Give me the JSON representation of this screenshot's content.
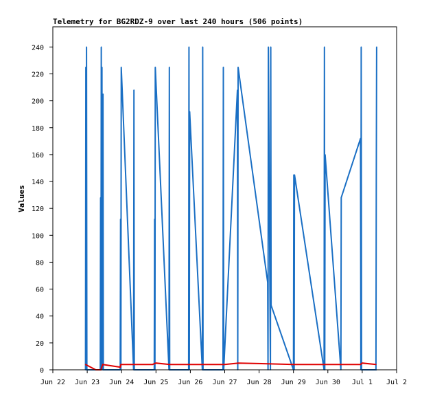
{
  "chart_data": {
    "type": "line",
    "title": "Telemetry for BG2RDZ-9 over last 240 hours (506 points)",
    "xlabel": "",
    "ylabel": "Values",
    "xlim": [
      0,
      10
    ],
    "ylim": [
      0,
      255
    ],
    "x_tick_labels": [
      "Jun 22",
      "Jun 23",
      "Jun 24",
      "Jun 25",
      "Jun 26",
      "Jun 27",
      "Jun 28",
      "Jun 29",
      "Jun 30",
      "Jul 1",
      "Jul 2"
    ],
    "y_ticks": [
      0,
      20,
      40,
      60,
      80,
      100,
      120,
      140,
      160,
      180,
      200,
      220,
      240
    ],
    "grid": false,
    "series": [
      {
        "name": "",
        "color": "#1a6fc4",
        "x": [
          0.95,
          0.96,
          0.97,
          0.98,
          0.99,
          1.0,
          1.38,
          1.39,
          1.4,
          1.41,
          1.42,
          1.43,
          1.44,
          1.46,
          1.47,
          1.48,
          1.96,
          1.97,
          1.98,
          1.99,
          2.35,
          2.36,
          2.37,
          2.95,
          2.96,
          2.97,
          2.98,
          3.38,
          3.39,
          3.4,
          3.95,
          3.96,
          3.97,
          3.98,
          4.35,
          4.36,
          4.37,
          4.95,
          4.96,
          4.97,
          5.37,
          5.38,
          5.39,
          6.25,
          6.26,
          6.27,
          6.33,
          6.34,
          6.35,
          7.0,
          7.01,
          7.02,
          7.03,
          7.89,
          7.9,
          7.91,
          7.92,
          8.38,
          8.39,
          8.95,
          8.96,
          8.97,
          8.98,
          9.4,
          9.41,
          9.42
        ],
        "y": [
          0,
          225,
          0,
          240,
          0,
          0,
          0,
          128,
          0,
          240,
          0,
          225,
          0,
          205,
          0,
          0,
          0,
          112,
          0,
          225,
          0,
          208,
          0,
          0,
          112,
          0,
          225,
          0,
          225,
          0,
          0,
          240,
          0,
          192,
          0,
          240,
          0,
          0,
          225,
          0,
          208,
          0,
          225,
          65,
          0,
          240,
          0,
          240,
          48,
          0,
          145,
          0,
          145,
          0,
          240,
          0,
          160,
          0,
          128,
          172,
          0,
          240,
          0,
          0,
          145,
          240
        ]
      },
      {
        "name": "",
        "color": "#e00000",
        "x": [
          0.95,
          1.25,
          1.4,
          1.45,
          1.96,
          1.98,
          2.9,
          3.0,
          3.4,
          5.0,
          5.4,
          7.0,
          8.95,
          9.0,
          9.4
        ],
        "y": [
          4,
          0,
          0,
          4,
          2,
          4,
          4,
          5,
          4,
          4,
          5,
          4,
          4,
          5,
          4
        ]
      }
    ]
  }
}
